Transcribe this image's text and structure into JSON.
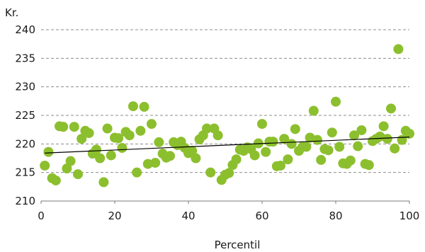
{
  "chart_data": {
    "type": "scatter",
    "title": "",
    "ylabel": "Kr.",
    "xlabel": "Percentil",
    "xlim": [
      0,
      100
    ],
    "ylim": [
      210,
      240
    ],
    "x_ticks": [
      0,
      20,
      40,
      60,
      80,
      100
    ],
    "y_ticks": [
      210,
      215,
      220,
      225,
      230,
      235,
      240
    ],
    "grid": "horizontal dashed",
    "legend": "none",
    "point_color": "#8cbf2e",
    "trend_color": "#000000",
    "trendline": {
      "x": [
        1,
        100
      ],
      "y": [
        218.4,
        221.2
      ]
    },
    "series": [
      {
        "x": [
          1,
          2,
          3,
          4,
          5,
          6,
          7,
          8,
          9,
          10,
          11,
          12,
          13,
          14,
          15,
          16,
          17,
          18,
          19,
          20,
          21,
          22,
          23,
          24,
          25,
          26,
          27,
          28,
          29,
          30,
          31,
          32,
          33,
          34,
          35,
          36,
          37,
          38,
          39,
          40,
          41,
          42,
          43,
          44,
          45,
          46,
          47,
          48,
          49,
          50,
          51,
          52,
          53,
          54,
          55,
          56,
          57,
          58,
          59,
          60,
          61,
          62,
          63,
          64,
          65,
          66,
          67,
          68,
          69,
          70,
          71,
          72,
          73,
          74,
          75,
          76,
          77,
          78,
          79,
          80,
          81,
          82,
          83,
          84,
          85,
          86,
          87,
          88,
          89,
          90,
          91,
          92,
          93,
          94,
          95,
          96,
          97,
          98,
          99,
          100
        ],
        "y": [
          216.2,
          218.6,
          214.0,
          213.6,
          223.1,
          223.0,
          215.7,
          217.0,
          223.0,
          214.7,
          220.9,
          222.3,
          221.9,
          218.3,
          219.0,
          217.5,
          213.3,
          222.7,
          218.0,
          221.1,
          221.0,
          219.3,
          222.1,
          221.5,
          226.6,
          215.0,
          222.3,
          226.5,
          216.5,
          223.5,
          216.7,
          220.3,
          218.3,
          217.6,
          217.9,
          220.3,
          219.8,
          220.4,
          219.3,
          218.4,
          218.8,
          217.5,
          220.8,
          221.5,
          222.7,
          215.0,
          222.7,
          221.5,
          213.7,
          214.6,
          214.9,
          216.3,
          217.3,
          219.0,
          218.8,
          219.4,
          219.1,
          218.0,
          220.1,
          223.5,
          218.6,
          220.4,
          220.4,
          216.1,
          216.2,
          220.9,
          217.3,
          220.0,
          222.6,
          218.8,
          219.5,
          219.5,
          221.1,
          225.8,
          220.7,
          217.2,
          219.1,
          218.9,
          222.0,
          227.4,
          219.5,
          216.6,
          216.5,
          217.1,
          221.5,
          219.6,
          222.4,
          216.5,
          216.3,
          220.5,
          220.9,
          221.3,
          223.1,
          220.9,
          226.2,
          219.2,
          236.6,
          220.7,
          222.3,
          221.8
        ]
      }
    ]
  }
}
